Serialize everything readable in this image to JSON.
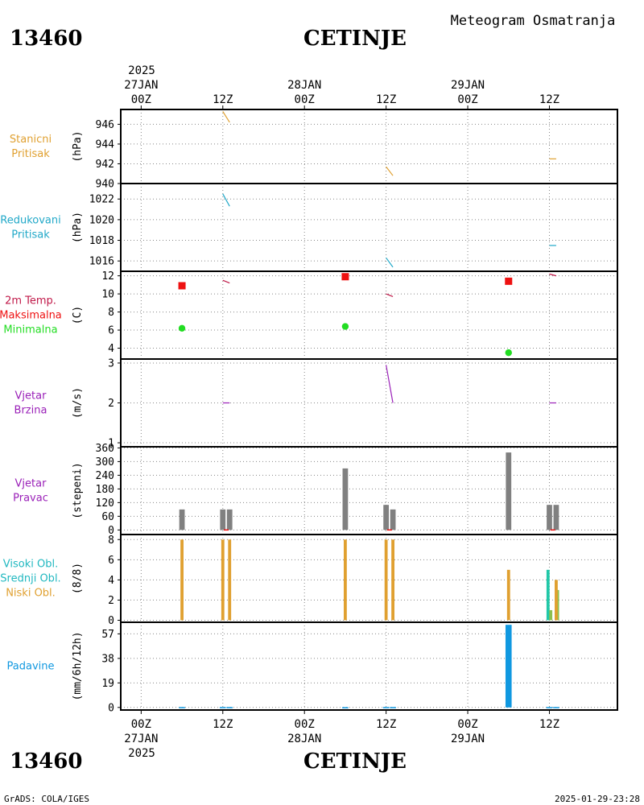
{
  "header": {
    "station_id": "13460",
    "station_name": "CETINJE",
    "product_title": "Meteogram Osmatranja"
  },
  "footer": {
    "station_id": "13460",
    "station_name": "CETINJE",
    "credit": "GrADS: COLA/IGES",
    "timestamp": "2025-01-29-23:28"
  },
  "time_axis": {
    "top_year": "2025",
    "bottom_year": "2025",
    "ticks": [
      {
        "h": 0,
        "hour": "00Z",
        "date": "27JAN"
      },
      {
        "h": 12,
        "hour": "12Z",
        "date": ""
      },
      {
        "h": 24,
        "hour": "00Z",
        "date": "28JAN"
      },
      {
        "h": 36,
        "hour": "12Z",
        "date": ""
      },
      {
        "h": 48,
        "hour": "00Z",
        "date": "29JAN"
      },
      {
        "h": 60,
        "hour": "12Z",
        "date": ""
      }
    ],
    "range_hours": [
      -3,
      70
    ]
  },
  "colors": {
    "orange": "#e0a030",
    "cyan": "#20a8c8",
    "crimson": "#c01848",
    "red": "#ee1111",
    "green": "#22dd22",
    "purple": "#9a20b8",
    "gray": "#808080",
    "teal": "#20c8a8",
    "olive_green": "#8cc050",
    "blue": "#1098e0"
  },
  "chart_data": [
    {
      "id": "stanicni",
      "type": "line",
      "label_lines": [
        {
          "text": "Stanicni",
          "color": "#e0a030"
        },
        {
          "text": "Pritisak",
          "color": "#e0a030"
        }
      ],
      "ylabel": "(hPa)",
      "ylim": [
        940,
        947.5
      ],
      "yticks": [
        940,
        942,
        944,
        946
      ],
      "series": [
        {
          "color": "#e0a030",
          "segments": [
            [
              [
                12,
                947.3
              ],
              [
                13,
                946.2
              ]
            ],
            [
              [
                36,
                941.7
              ],
              [
                37,
                940.8
              ]
            ],
            [
              [
                60,
                942.5
              ],
              [
                61,
                942.5
              ]
            ]
          ]
        }
      ]
    },
    {
      "id": "redukovani",
      "type": "line",
      "label_lines": [
        {
          "text": "Redukovani",
          "color": "#20a8c8"
        },
        {
          "text": "Pritisak",
          "color": "#20a8c8"
        }
      ],
      "ylabel": "(hPa)",
      "ylim": [
        1015,
        1023.5
      ],
      "yticks": [
        1016,
        1018,
        1020,
        1022
      ],
      "series": [
        {
          "color": "#20a8c8",
          "segments": [
            [
              [
                12,
                1022.5
              ],
              [
                13,
                1021.3
              ]
            ],
            [
              [
                36,
                1016.3
              ],
              [
                37,
                1015.4
              ]
            ],
            [
              [
                60,
                1017.5
              ],
              [
                61,
                1017.5
              ]
            ]
          ]
        }
      ]
    },
    {
      "id": "temp",
      "type": "line+scatter",
      "label_lines": [
        {
          "text": "2m Temp.",
          "color": "#c01848"
        },
        {
          "text": "Maksimalna",
          "color": "#ee1111"
        },
        {
          "text": "Minimalna",
          "color": "#22dd22"
        }
      ],
      "ylabel": "(C)",
      "ylim": [
        2.8,
        12.5
      ],
      "yticks": [
        4,
        6,
        8,
        10,
        12
      ],
      "series": [
        {
          "name": "2m Temp.",
          "color": "#c01848",
          "segments": [
            [
              [
                12,
                11.5
              ],
              [
                13,
                11.2
              ]
            ],
            [
              [
                36,
                10.0
              ],
              [
                37,
                9.7
              ]
            ],
            [
              [
                60,
                12.2
              ],
              [
                61,
                12.0
              ]
            ]
          ]
        }
      ],
      "max_points": {
        "name": "Maksimalna",
        "color": "#ee1111",
        "x": [
          6,
          30,
          54
        ],
        "y": [
          10.9,
          11.9,
          11.4
        ]
      },
      "min_points": {
        "name": "Minimalna",
        "color": "#22dd22",
        "x": [
          6,
          30,
          54
        ],
        "y": [
          6.2,
          6.4,
          3.5
        ]
      }
    },
    {
      "id": "brzina",
      "type": "line",
      "label_lines": [
        {
          "text": "Vjetar",
          "color": "#9a20b8"
        },
        {
          "text": "Brzina",
          "color": "#9a20b8"
        }
      ],
      "ylabel": "(m/s)",
      "ylim": [
        0.9,
        3.1
      ],
      "yticks": [
        1,
        2,
        3
      ],
      "series": [
        {
          "color": "#9a20b8",
          "segments": [
            [
              [
                12,
                2.0
              ],
              [
                13,
                2.0
              ]
            ],
            [
              [
                36,
                2.95
              ],
              [
                37,
                2.0
              ]
            ],
            [
              [
                60,
                2.0
              ],
              [
                61,
                2.0
              ]
            ]
          ]
        }
      ]
    },
    {
      "id": "pravac",
      "type": "bar",
      "label_lines": [
        {
          "text": "Vjetar",
          "color": "#9a20b8"
        },
        {
          "text": "Pravac",
          "color": "#9a20b8"
        }
      ],
      "ylabel": "(stepeni)",
      "ylim": [
        -20,
        365
      ],
      "yticks": [
        0,
        60,
        120,
        180,
        240,
        300,
        360
      ],
      "bar_color": "#808080",
      "bar_width_hours": 0.8,
      "x": [
        6,
        12,
        13,
        30,
        36,
        37,
        54,
        60,
        61
      ],
      "values": [
        90,
        90,
        90,
        270,
        110,
        90,
        340,
        110,
        110
      ],
      "calm_marks": {
        "color": "#ee1111",
        "x": [
          12.5,
          36.5,
          60.5
        ],
        "y": [
          0,
          0,
          0
        ]
      }
    },
    {
      "id": "oblaci",
      "type": "bar",
      "label_lines": [
        {
          "text": "Visoki Obl.",
          "color": "#20b8c0"
        },
        {
          "text": "Srednji Obl.",
          "color": "#20b8c0"
        },
        {
          "text": "Niski Obl.",
          "color": "#e0a030"
        }
      ],
      "ylabel": "(8/8)",
      "ylim": [
        -0.2,
        8.5
      ],
      "yticks": [
        0,
        2,
        4,
        6,
        8
      ],
      "bar_width_hours": 0.45,
      "series": [
        {
          "name": "Visoki Obl.",
          "color": "#20c8a8",
          "x": [
            60
          ],
          "values": [
            5
          ],
          "offset": -0.2
        },
        {
          "name": "Srednji Obl.",
          "color": "#8cc050",
          "x": [
            60,
            61
          ],
          "values": [
            1,
            3
          ],
          "offset": 0.2
        },
        {
          "name": "Niski Obl.",
          "color": "#e0a030",
          "x": [
            6,
            12,
            13,
            30,
            36,
            37,
            54,
            61
          ],
          "values": [
            8,
            8,
            8,
            8,
            8,
            8,
            5,
            4
          ],
          "offset": 0
        }
      ]
    },
    {
      "id": "padavine",
      "type": "bar",
      "label_lines": [
        {
          "text": "Padavine",
          "color": "#1098e0"
        }
      ],
      "ylabel": "(mm/6h/12h)",
      "ylim": [
        -2,
        66
      ],
      "yticks": [
        0,
        19,
        38,
        57
      ],
      "bar_color": "#1098e0",
      "bar_width_hours": 0.9,
      "x": [
        6,
        12,
        13,
        30,
        36,
        37,
        54,
        60,
        61
      ],
      "values": [
        0.3,
        0.3,
        0.3,
        0.2,
        0.3,
        0.3,
        64,
        0.3,
        0.3
      ]
    }
  ]
}
